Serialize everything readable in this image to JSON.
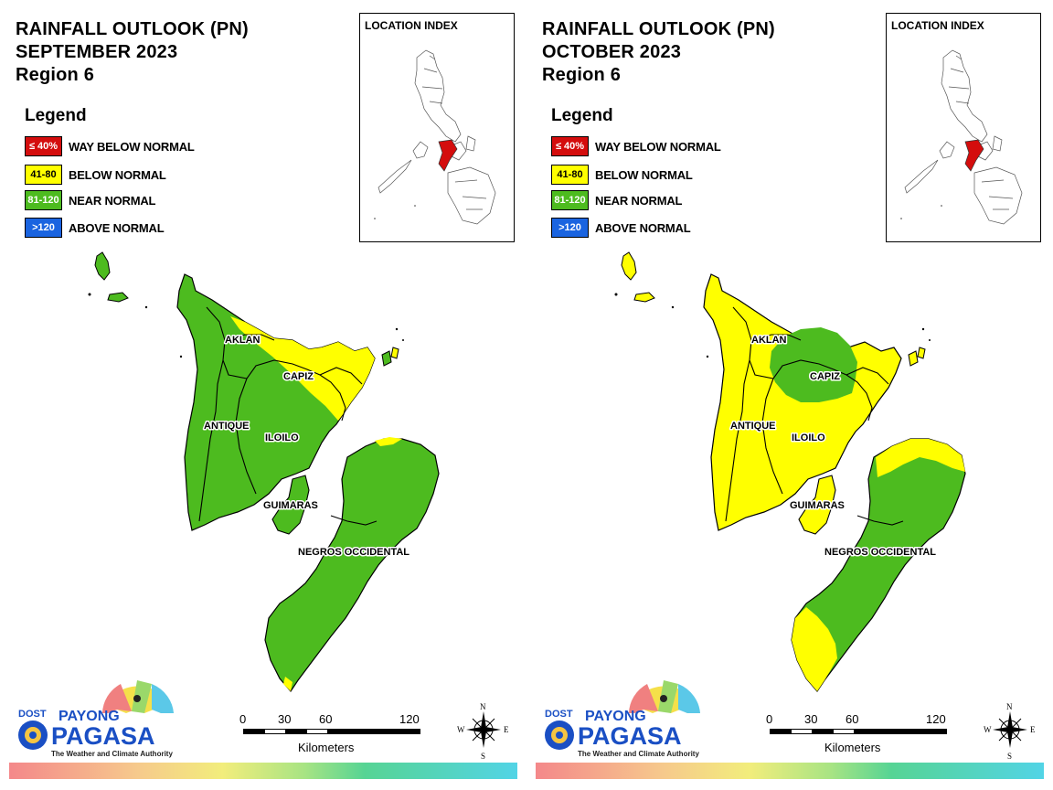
{
  "panels": [
    {
      "title_line1": "RAINFALL OUTLOOK (PN)",
      "title_line2": "SEPTEMBER 2023",
      "title_line3": "Region 6",
      "location_index_title": "LOCATION INDEX",
      "legend_title": "Legend",
      "legend": [
        {
          "range": "≤ 40%",
          "label": "WAY BELOW NORMAL",
          "color": "#d40d0d"
        },
        {
          "range": "41-80",
          "label": "BELOW NORMAL",
          "color": "#ffff00"
        },
        {
          "range": "81-120",
          "label": "NEAR NORMAL",
          "color": "#4dbb1f"
        },
        {
          "range": ">120",
          "label": "ABOVE NORMAL",
          "color": "#1a64e0"
        }
      ],
      "provinces": {
        "aklan": "AKLAN",
        "capiz": "CAPIZ",
        "antique": "ANTIQUE",
        "iloilo": "ILOILO",
        "guimaras": "GUIMARAS",
        "negros": "NEGROS OCCIDENTAL"
      },
      "scale": {
        "ticks": [
          "0",
          "30",
          "60",
          "120"
        ],
        "unit": "Kilometers"
      },
      "compass": {
        "n": "N",
        "s": "S",
        "e": "E",
        "w": "W"
      },
      "logo": {
        "dost": "DOST",
        "payong": "PAYONG",
        "pagasa": "PAGASA",
        "tagline": "The Weather and Climate Authority"
      }
    },
    {
      "title_line1": "RAINFALL OUTLOOK (PN)",
      "title_line2": "OCTOBER 2023",
      "title_line3": "Region 6",
      "location_index_title": "LOCATION INDEX",
      "legend_title": "Legend",
      "legend": [
        {
          "range": "≤ 40%",
          "label": "WAY BELOW NORMAL",
          "color": "#d40d0d"
        },
        {
          "range": "41-80",
          "label": "BELOW NORMAL",
          "color": "#ffff00"
        },
        {
          "range": "81-120",
          "label": "NEAR NORMAL",
          "color": "#4dbb1f"
        },
        {
          "range": ">120",
          "label": "ABOVE NORMAL",
          "color": "#1a64e0"
        }
      ],
      "provinces": {
        "aklan": "AKLAN",
        "capiz": "CAPIZ",
        "antique": "ANTIQUE",
        "iloilo": "ILOILO",
        "guimaras": "GUIMARAS",
        "negros": "NEGROS OCCIDENTAL"
      },
      "scale": {
        "ticks": [
          "0",
          "30",
          "60",
          "120"
        ],
        "unit": "Kilometers"
      },
      "compass": {
        "n": "N",
        "s": "S",
        "e": "E",
        "w": "W"
      },
      "logo": {
        "dost": "DOST",
        "payong": "PAYONG",
        "pagasa": "PAGASA",
        "tagline": "The Weather and Climate Authority"
      }
    }
  ],
  "colors": {
    "near_normal": "#4dbb1f",
    "below_normal": "#ffff00",
    "highlight_region": "#d40d0d"
  }
}
